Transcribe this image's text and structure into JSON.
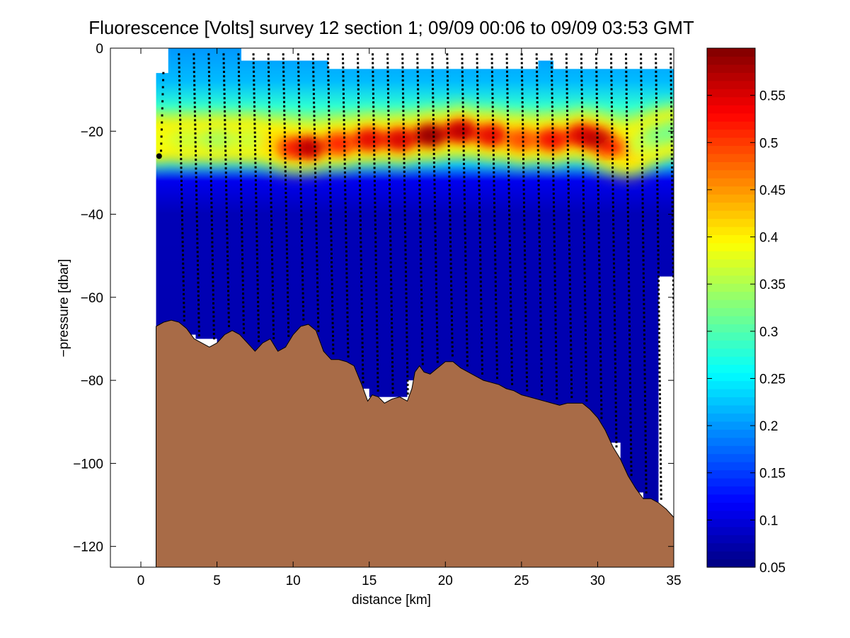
{
  "chart_data": {
    "type": "heatmap",
    "title": "Fluorescence [Volts] survey 12 section 1; 09/09 00:06 to 09/09 03:53 GMT",
    "xlabel": "distance [km]",
    "ylabel": "−pressure [dbar]",
    "xlim": [
      -2,
      35
    ],
    "ylim": [
      -125,
      0
    ],
    "x_ticks": [
      0,
      5,
      10,
      15,
      20,
      25,
      30,
      35
    ],
    "x_tick_labels": [
      "0",
      "5",
      "10",
      "15",
      "20",
      "25",
      "30",
      "35"
    ],
    "y_ticks": [
      0,
      -20,
      -40,
      -60,
      -80,
      -100,
      -120
    ],
    "y_tick_labels": [
      "0",
      "−20",
      "−40",
      "−60",
      "−80",
      "−100",
      "−120"
    ],
    "colorbar": {
      "colormap": "jet",
      "range": [
        0.05,
        0.6
      ],
      "ticks": [
        0.05,
        0.1,
        0.15,
        0.2,
        0.25,
        0.3,
        0.35,
        0.4,
        0.45,
        0.5,
        0.55
      ],
      "tick_labels": [
        "0.05",
        "0.1",
        "0.15",
        "0.2",
        "0.25",
        "0.3",
        "0.35",
        "0.4",
        "0.45",
        "0.5",
        "0.55"
      ]
    },
    "chlorophyll_layer": {
      "distance_km": [
        1,
        3,
        5,
        7,
        9,
        10,
        11,
        13,
        15,
        17,
        19,
        21,
        23,
        25,
        27,
        29,
        30,
        31,
        32,
        33,
        34,
        35
      ],
      "peak_depth": [
        -22,
        -22,
        -22,
        -22,
        -23,
        -24,
        -24,
        -23,
        -22,
        -22,
        -21,
        -20,
        -21,
        -22,
        -22,
        -21,
        -22,
        -24,
        -25,
        -23,
        -21,
        -20
      ],
      "peak_fluorescence": [
        0.42,
        0.4,
        0.38,
        0.4,
        0.45,
        0.52,
        0.58,
        0.52,
        0.55,
        0.56,
        0.6,
        0.58,
        0.55,
        0.5,
        0.54,
        0.56,
        0.58,
        0.52,
        0.45,
        0.4,
        0.36,
        0.35
      ]
    },
    "data_coverage_top": {
      "distance_km": [
        1,
        1.8,
        6.6,
        12.3,
        26.1,
        27.1,
        35
      ],
      "depth": [
        -6,
        0,
        -3,
        -5,
        -3,
        -5,
        -5
      ]
    },
    "data_coverage_bottom": {
      "distance_km": [
        1,
        1.8,
        3.6,
        5,
        7,
        10,
        13,
        15,
        17.5,
        20,
        22.5,
        25,
        27.5,
        30,
        31.5,
        33,
        34,
        35
      ],
      "depth": [
        -65,
        -67,
        -69,
        -70,
        -72,
        -74,
        -76,
        -82,
        -84,
        -80,
        -84,
        -86,
        -88,
        -90,
        -95,
        -107,
        -110,
        -55
      ]
    },
    "casts": {
      "count": 34,
      "start_km": 1.5,
      "end_km": 34.8,
      "short_cast_depth": -26
    },
    "seafloor": {
      "distance_km": [
        1,
        1.5,
        2,
        2.5,
        3,
        3.5,
        4,
        4.5,
        5,
        5.5,
        6,
        6.5,
        7,
        7.5,
        8,
        8.5,
        9,
        9.5,
        10,
        10.5,
        11,
        11.5,
        12,
        12.5,
        13,
        13.5,
        14,
        14.5,
        14.9,
        15.2,
        15.6,
        16,
        16.5,
        17,
        17.5,
        17.8,
        18,
        18.3,
        18.6,
        19,
        19.5,
        20,
        20.5,
        21,
        21.5,
        22,
        22.5,
        23,
        23.5,
        24,
        24.5,
        25,
        25.5,
        26,
        26.5,
        27,
        27.5,
        28,
        28.5,
        29,
        29.5,
        30,
        30.5,
        31,
        31.5,
        32,
        32.5,
        33,
        33.5,
        34,
        34.5,
        35
      ],
      "depth": [
        -67,
        -66,
        -65.5,
        -66,
        -67.5,
        -70,
        -71,
        -72,
        -71,
        -69,
        -68,
        -69,
        -71,
        -73,
        -71,
        -70,
        -73,
        -72,
        -69,
        -67,
        -66.5,
        -68,
        -73,
        -75,
        -75,
        -75.5,
        -76.5,
        -81,
        -85,
        -83.5,
        -84,
        -85.5,
        -84.5,
        -84,
        -85,
        -82,
        -78,
        -76.5,
        -78,
        -78.5,
        -77,
        -75.5,
        -75.5,
        -77,
        -78,
        -79,
        -80,
        -80.5,
        -81,
        -82,
        -82.5,
        -83.5,
        -84,
        -84.5,
        -85,
        -85.5,
        -86,
        -85.5,
        -85.5,
        -85.5,
        -87,
        -89,
        -92,
        -96,
        -99,
        -103,
        -106,
        -108.5,
        -108.5,
        -109.5,
        -111,
        -113
      ]
    }
  }
}
